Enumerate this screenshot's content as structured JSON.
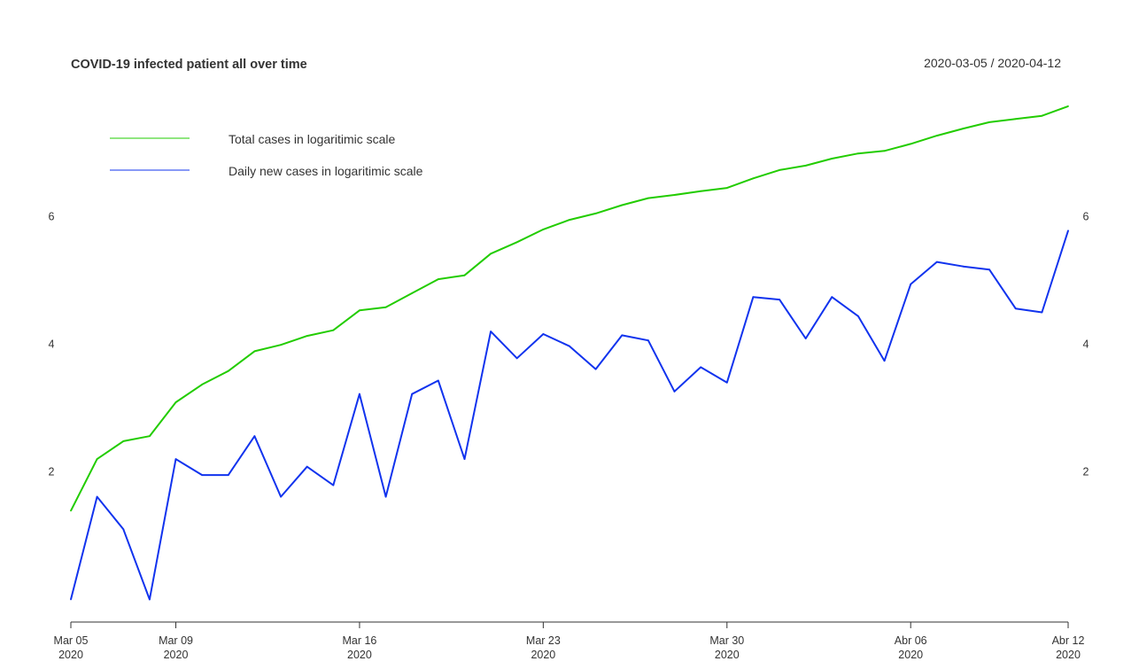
{
  "chart_data": {
    "type": "line",
    "title": "COVID-19 infected patient all over time",
    "date_range": "2020-03-05 / 2020-04-12",
    "x": [
      "2020-03-05",
      "2020-03-06",
      "2020-03-07",
      "2020-03-08",
      "2020-03-09",
      "2020-03-10",
      "2020-03-11",
      "2020-03-12",
      "2020-03-13",
      "2020-03-14",
      "2020-03-15",
      "2020-03-16",
      "2020-03-17",
      "2020-03-18",
      "2020-03-19",
      "2020-03-20",
      "2020-03-21",
      "2020-03-22",
      "2020-03-23",
      "2020-03-24",
      "2020-03-25",
      "2020-03-26",
      "2020-03-27",
      "2020-03-28",
      "2020-03-29",
      "2020-03-30",
      "2020-03-31",
      "2020-04-01",
      "2020-04-02",
      "2020-04-03",
      "2020-04-04",
      "2020-04-05",
      "2020-04-06",
      "2020-04-07",
      "2020-04-08",
      "2020-04-09",
      "2020-04-10",
      "2020-04-11",
      "2020-04-12"
    ],
    "series": [
      {
        "name": "Total cases in logaritimic scale",
        "color": "#22cc00",
        "values": [
          1.39,
          2.2,
          2.48,
          2.56,
          3.09,
          3.37,
          3.58,
          3.89,
          3.99,
          4.13,
          4.22,
          4.53,
          4.58,
          4.8,
          5.02,
          5.08,
          5.42,
          5.6,
          5.8,
          5.95,
          6.05,
          6.18,
          6.29,
          6.34,
          6.4,
          6.45,
          6.6,
          6.73,
          6.8,
          6.91,
          6.99,
          7.03,
          7.14,
          7.27,
          7.38,
          7.48,
          7.53,
          7.58,
          7.73
        ]
      },
      {
        "name": "Daily new cases in logaritimic scale",
        "color": "#1133ee",
        "values": [
          0.0,
          1.61,
          1.1,
          0.0,
          2.2,
          1.95,
          1.95,
          2.56,
          1.61,
          2.08,
          1.79,
          3.22,
          1.61,
          3.22,
          3.43,
          2.2,
          4.2,
          3.78,
          4.16,
          3.97,
          3.61,
          4.14,
          4.06,
          3.26,
          3.64,
          3.4,
          4.74,
          4.7,
          4.09,
          4.74,
          4.44,
          3.74,
          4.94,
          5.29,
          5.22,
          5.17,
          4.56,
          4.5,
          5.78
        ]
      }
    ],
    "x_ticks": [
      {
        "label": "Mar 05",
        "sub": "2020",
        "date": "2020-03-05"
      },
      {
        "label": "Mar 09",
        "sub": "2020",
        "date": "2020-03-09"
      },
      {
        "label": "Mar 16",
        "sub": "2020",
        "date": "2020-03-16"
      },
      {
        "label": "Mar 23",
        "sub": "2020",
        "date": "2020-03-23"
      },
      {
        "label": "Mar 30",
        "sub": "2020",
        "date": "2020-03-30"
      },
      {
        "label": "Abr 06",
        "sub": "2020",
        "date": "2020-04-06"
      },
      {
        "label": "Abr 12",
        "sub": "2020",
        "date": "2020-04-12"
      }
    ],
    "y_ticks": [
      2,
      4,
      6
    ],
    "ylim": [
      0,
      7.8
    ],
    "grid": false,
    "legend_position": "top-left"
  }
}
